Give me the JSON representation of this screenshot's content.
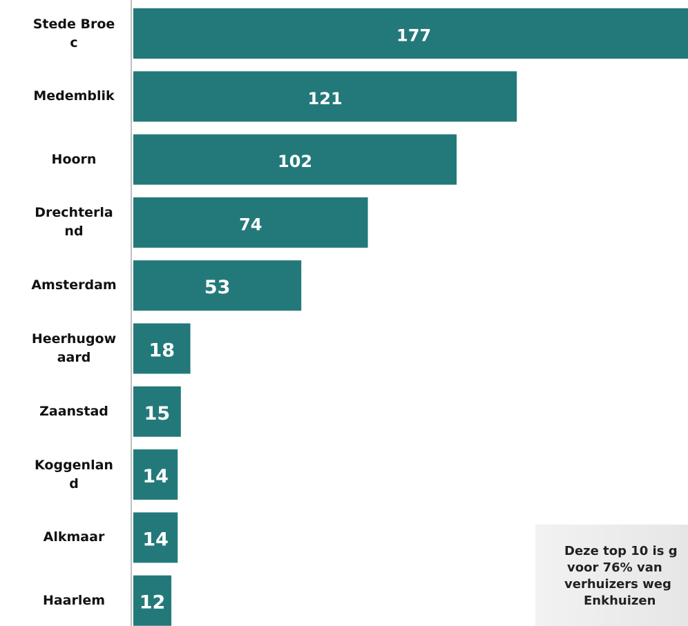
{
  "chart_data": {
    "type": "barh",
    "categories": [
      "Stede Broec",
      "Medemblik",
      "Hoorn",
      "Drechterland",
      "Amsterdam",
      "Heerhugowaard",
      "Zaanstad",
      "Koggenland",
      "Alkmaar",
      "Haarlem"
    ],
    "values": [
      177,
      121,
      102,
      74,
      53,
      18,
      15,
      14,
      14,
      12
    ],
    "color": "#23797a",
    "xlim": [
      0,
      175
    ],
    "annotation": [
      "Deze top 10 is g",
      "voor 76% van",
      "verhuizers weg",
      "Enkhuizen"
    ]
  }
}
